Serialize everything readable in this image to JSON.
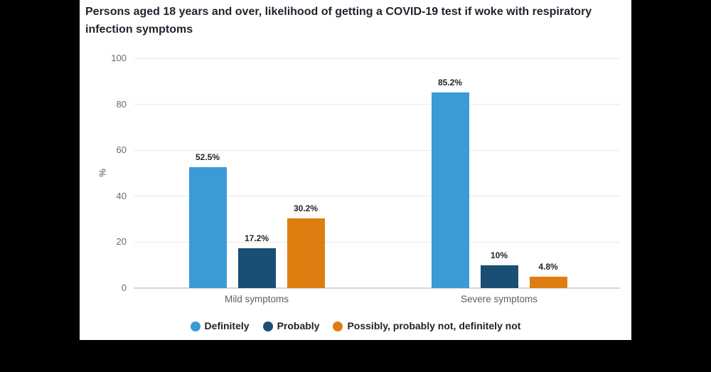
{
  "window": {
    "background_color": "#000000",
    "panel_color": "#ffffff"
  },
  "header": {
    "title_lines": [
      "Persons aged 18 years and over, likelihood of getting a COVID-19 test if woke with respiratory",
      "infection symptoms"
    ]
  },
  "chart_data": {
    "type": "bar",
    "title": "Persons aged 18 years and over, likelihood of getting a COVID-19 test if woke with respiratory infection symptoms",
    "xlabel": "",
    "ylabel": "%",
    "ylim": [
      0,
      100
    ],
    "yticks": [
      0,
      20,
      40,
      60,
      80,
      100
    ],
    "grid": true,
    "legend_position": "bottom",
    "categories": [
      "Mild symptoms",
      "Severe symptoms"
    ],
    "series": [
      {
        "name": "Definitely",
        "slug": "definitely",
        "color": "#3A9BD5",
        "values": [
          52.5,
          85.2
        ],
        "labels": [
          "52.5%",
          "85.2%"
        ]
      },
      {
        "name": "Probably",
        "slug": "probably",
        "color": "#1A4E74",
        "values": [
          17.2,
          10
        ],
        "labels": [
          "17.2%",
          "10%"
        ]
      },
      {
        "name": "Possibly, probably not, definitely not",
        "slug": "possibly-probably-not-definitely-not",
        "color": "#DE7E10",
        "values": [
          30.2,
          4.8
        ],
        "labels": [
          "30.2%",
          "4.8%"
        ]
      }
    ],
    "colors": {
      "grid_line": "#E7E9EB",
      "axis_line": "#D6D6D6",
      "tick_label": "#666A6E",
      "data_label": "#252423",
      "category_label": "#605E5C",
      "legend_text": "#1F2228",
      "title_text": "#21242E"
    }
  }
}
